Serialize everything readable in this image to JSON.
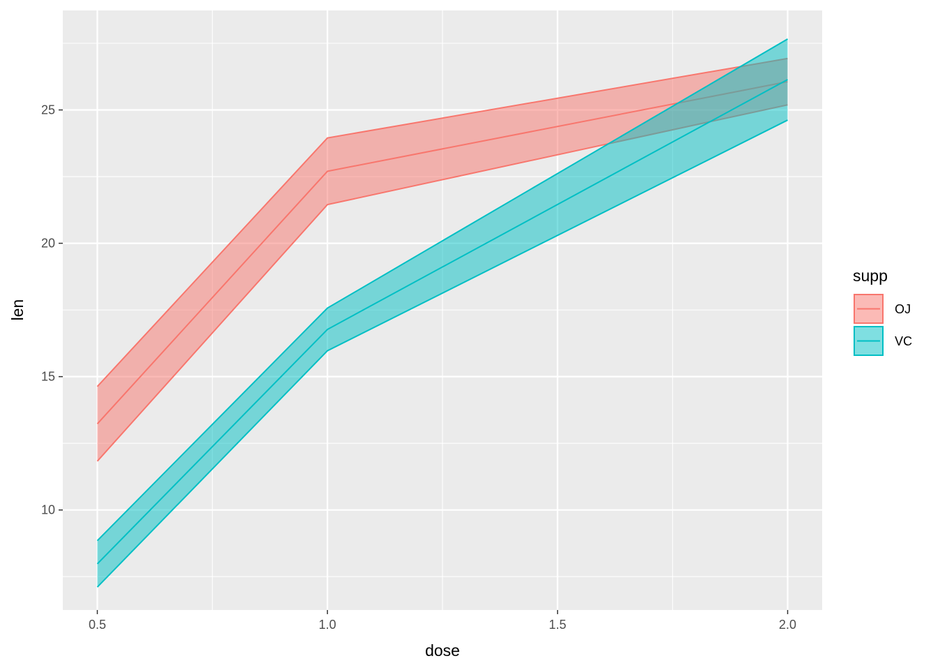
{
  "chart_data": {
    "type": "area",
    "xlabel": "dose",
    "ylabel": "len",
    "x": [
      0.5,
      1.0,
      2.0
    ],
    "xticks": [
      "0.5",
      "1.0",
      "1.5",
      "2.0"
    ],
    "xtick_values": [
      0.5,
      1.0,
      1.5,
      2.0
    ],
    "yticks": [
      "10",
      "15",
      "20",
      "25"
    ],
    "ytick_values": [
      10,
      15,
      20,
      25
    ],
    "xlim": [
      0.425,
      2.075
    ],
    "ylim": [
      6.25,
      28.73
    ],
    "grid": true,
    "legend": {
      "title": "supp",
      "position": "right"
    },
    "series": [
      {
        "name": "OJ",
        "color": "#F8766D",
        "mean": [
          13.23,
          22.7,
          26.06
        ],
        "lower": [
          11.83,
          21.45,
          25.19
        ],
        "upper": [
          14.63,
          23.95,
          26.93
        ]
      },
      {
        "name": "VC",
        "color": "#00BFC4",
        "mean": [
          7.98,
          16.77,
          26.14
        ],
        "lower": [
          7.11,
          15.97,
          24.62
        ],
        "upper": [
          8.85,
          17.57,
          27.66
        ]
      }
    ]
  }
}
